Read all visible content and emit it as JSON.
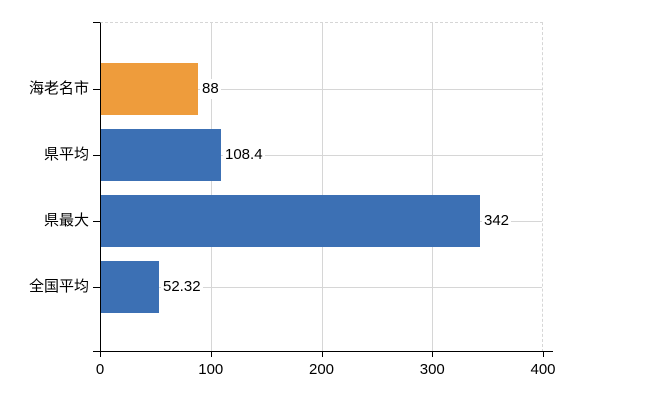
{
  "chart_data": {
    "type": "bar",
    "orientation": "horizontal",
    "categories": [
      "海老名市",
      "県平均",
      "県最大",
      "全国平均"
    ],
    "values": [
      88,
      108.4,
      342,
      52.32
    ],
    "value_labels": [
      "88",
      "108.4",
      "342",
      "52.32"
    ],
    "bar_colors": [
      "#EE9C3C",
      "#3C70B4",
      "#3C70B4",
      "#3C70B4"
    ],
    "highlight_color": "#EE9C3C",
    "base_color": "#3C70B4",
    "x_ticks": [
      0,
      100,
      200,
      300,
      400
    ],
    "x_tick_labels": [
      "0",
      "100",
      "200",
      "300",
      "400"
    ],
    "xlim": [
      0,
      400
    ],
    "xlabel": "",
    "ylabel": "",
    "grid": true,
    "grid_color": "#D6D6D6",
    "axis_color": "#000000",
    "text_color": "#000000",
    "background_color": "#FFFFFF",
    "legend": null
  }
}
